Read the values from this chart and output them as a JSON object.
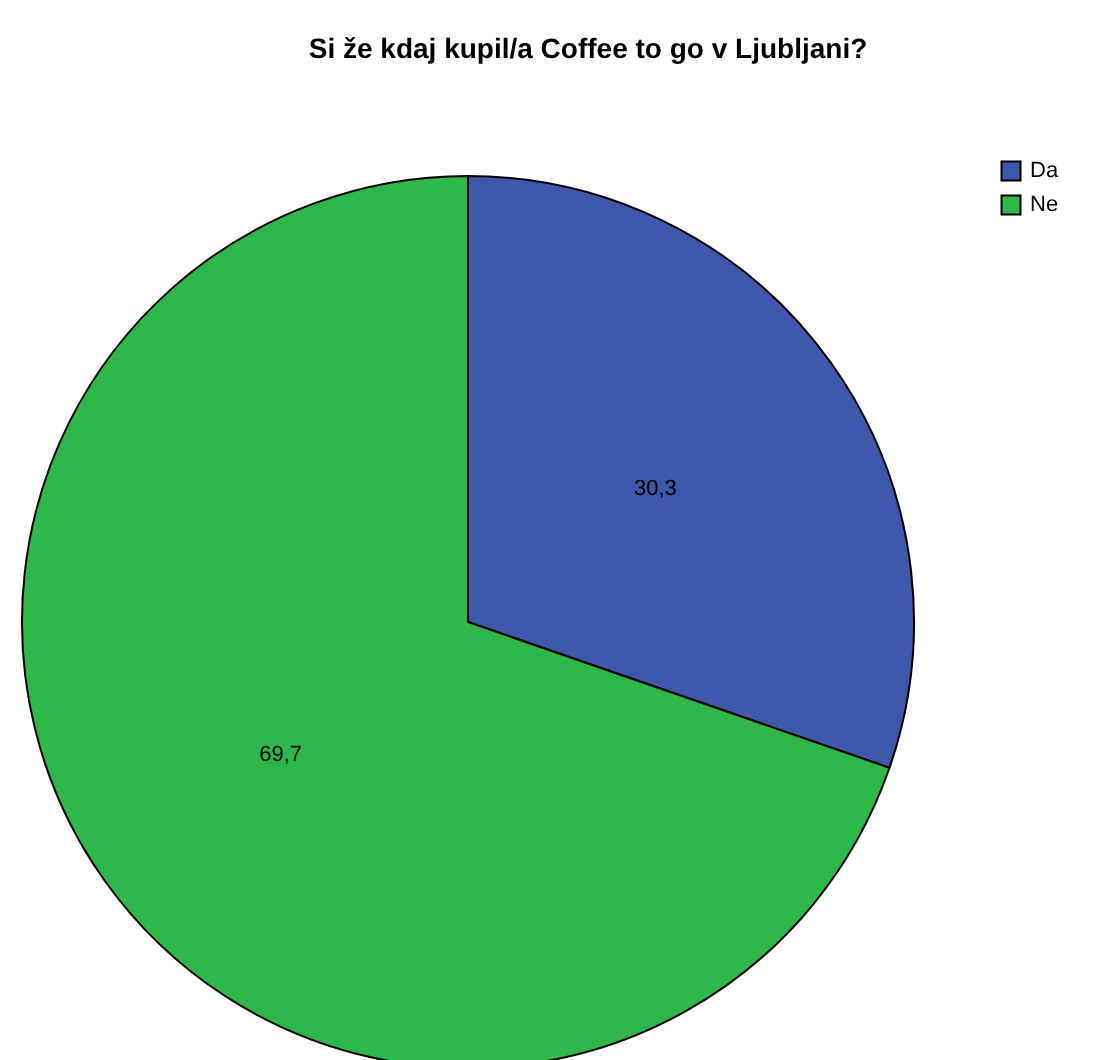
{
  "chart_data": {
    "type": "pie",
    "title": "Si že kdaj kupil/a Coffee to go v Ljubljani?",
    "categories": [
      "Da",
      "Ne"
    ],
    "values": [
      30.3,
      69.7
    ],
    "colors": [
      "#3e58ac",
      "#2fb84a"
    ],
    "value_labels": [
      "30,3",
      "69,7"
    ],
    "legend": "top right"
  }
}
